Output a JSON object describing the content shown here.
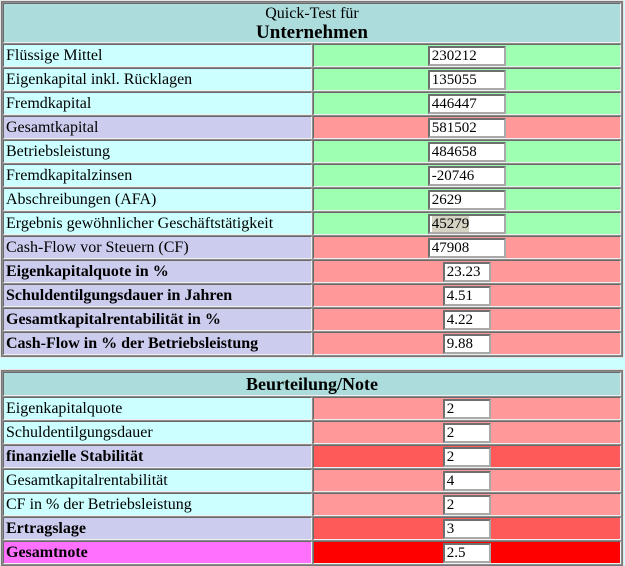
{
  "header": {
    "title_line1": "Quick-Test für",
    "title_line2": "Unternehmen"
  },
  "table1": {
    "rows": [
      {
        "label": "Flüssige Mittel",
        "value": "230212"
      },
      {
        "label": "Eigenkapital inkl. Rücklagen",
        "value": "135055"
      },
      {
        "label": "Fremdkapital",
        "value": "446447"
      },
      {
        "label": "Gesamtkapital",
        "value": "581502"
      },
      {
        "label": "Betriebsleistung",
        "value": "484658"
      },
      {
        "label": "Fremdkapitalzinsen",
        "value": "-20746"
      },
      {
        "label": "Abschreibungen (AFA)",
        "value": "2629"
      },
      {
        "label": "Ergebnis gewöhnlicher Geschäftstätigkeit",
        "value": "45279"
      },
      {
        "label": "Cash-Flow vor Steuern (CF)",
        "value": "47908"
      },
      {
        "label": "Eigenkapitalquote in %",
        "value": "23.23"
      },
      {
        "label": "Schuldentilgungsdauer in Jahren",
        "value": "4.51"
      },
      {
        "label": "Gesamtkapitalrentabilität in %",
        "value": "4.22"
      },
      {
        "label": "Cash-Flow in % der Betriebsleistung",
        "value": "9.88"
      }
    ]
  },
  "table2": {
    "header": "Beurteilung/Note",
    "rows": [
      {
        "label": "Eigenkapitalquote",
        "value": "2"
      },
      {
        "label": "Schuldentilgungsdauer",
        "value": "2"
      },
      {
        "label": "finanzielle Stabilität",
        "value": "2"
      },
      {
        "label": "Gesamtkapitalrentabilität",
        "value": "4"
      },
      {
        "label": "CF in % der Betriebsleistung",
        "value": "2"
      },
      {
        "label": "Ertragslage",
        "value": "3"
      },
      {
        "label": "Gesamtnote",
        "value": "2.5"
      }
    ]
  },
  "colors": {
    "page_bg": "#CCFFFF",
    "header_teal": "#ACDCDC",
    "label_cyan": "#CCFFFF",
    "label_lavender": "#CCCCEE",
    "label_magenta": "#FF70FF",
    "cell_green": "#9FFFB0",
    "cell_red": "#FF9999",
    "cell_red_strong": "#FF5A5A",
    "cell_red_full": "#FF0000",
    "selection_tan": "#D6D2C4",
    "grid_line": "#8D8D8D"
  }
}
